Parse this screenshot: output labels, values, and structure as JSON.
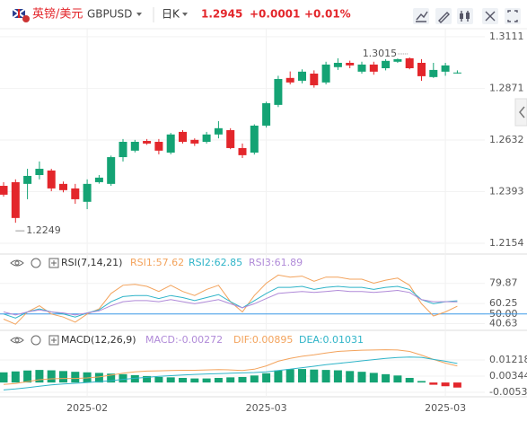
{
  "header": {
    "name": "英镑/美元",
    "symbol": "GBPUSD",
    "period": "日K",
    "price": "1.2945",
    "change": "+0.0001",
    "change_pct": "+0.01%"
  },
  "chart_data": [
    {
      "type": "candlestick",
      "categories": [
        null,
        null,
        null,
        null,
        null,
        null,
        null,
        "2025-02",
        null,
        null,
        null,
        null,
        null,
        null,
        null,
        null,
        null,
        null,
        null,
        null,
        null,
        null,
        "2025-03",
        null,
        null,
        null,
        null,
        null,
        null,
        null,
        null,
        null,
        null,
        null,
        null,
        null,
        null,
        "2025-03",
        null
      ],
      "open": [
        1.242,
        1.2437,
        1.2429,
        1.247,
        1.2491,
        1.2429,
        1.2408,
        1.2346,
        1.2437,
        1.2429,
        1.2553,
        1.2583,
        1.2628,
        1.2624,
        1.2574,
        1.267,
        1.2633,
        1.2624,
        1.2658,
        1.2678,
        1.2595,
        1.2574,
        1.2699,
        1.2795,
        1.292,
        1.2907,
        1.294,
        1.2899,
        1.297,
        1.299,
        1.2949,
        1.2982,
        1.2965,
        1.2995,
        1.3011,
        1.299,
        1.2924,
        1.2949,
        1.2944
      ],
      "high": [
        1.2437,
        1.245,
        1.2499,
        1.2533,
        1.2499,
        1.244,
        1.2429,
        1.245,
        1.247,
        1.256,
        1.2637,
        1.2633,
        1.2637,
        1.2637,
        1.2665,
        1.2678,
        1.264,
        1.267,
        1.272,
        1.2687,
        1.2616,
        1.2705,
        1.281,
        1.293,
        1.295,
        1.296,
        1.2955,
        1.2995,
        1.3011,
        1.3,
        1.2995,
        1.2995,
        1.3007,
        1.301,
        1.3015,
        1.3007,
        1.299,
        1.299,
        1.2955
      ],
      "low": [
        1.237,
        1.2249,
        1.2358,
        1.245,
        1.2395,
        1.239,
        1.2337,
        1.2312,
        1.243,
        1.242,
        1.2533,
        1.2575,
        1.261,
        1.2566,
        1.2566,
        1.2616,
        1.2605,
        1.2616,
        1.264,
        1.259,
        1.2549,
        1.2565,
        1.269,
        1.2785,
        1.289,
        1.2895,
        1.2875,
        1.289,
        1.2957,
        1.2965,
        1.294,
        1.2935,
        1.2955,
        1.299,
        1.296,
        1.2907,
        1.292,
        1.293,
        1.294
      ],
      "close": [
        1.2379,
        1.2271,
        1.2466,
        1.2499,
        1.2408,
        1.24,
        1.2358,
        1.2429,
        1.2458,
        1.2553,
        1.2624,
        1.2624,
        1.2616,
        1.2583,
        1.2658,
        1.2624,
        1.2616,
        1.2658,
        1.2687,
        1.2595,
        1.2562,
        1.2699,
        1.2803,
        1.2915,
        1.2899,
        1.2949,
        1.2886,
        1.2982,
        1.299,
        1.2978,
        1.2982,
        1.2949,
        1.2999,
        1.3007,
        1.2965,
        1.2928,
        1.2957,
        1.2978,
        1.2945
      ],
      "up_color": "#14a374",
      "down_color": "#e3262b",
      "ylim": [
        1.2104,
        1.3148
      ],
      "yticks": [
        1.3111,
        1.2871,
        1.2632,
        1.2393,
        1.2154
      ],
      "annotations": [
        1.3015,
        1.2249
      ]
    },
    {
      "type": "line",
      "title": "RSI(7,14,21)",
      "series": [
        {
          "name": "RSI1:57.62",
          "color": "#f3a35c",
          "values": [
            45,
            40,
            52,
            58,
            50,
            47,
            42,
            50,
            55,
            70,
            78,
            79,
            77,
            72,
            78,
            72,
            68,
            74,
            78,
            62,
            52,
            68,
            80,
            88,
            86,
            87,
            82,
            86,
            86,
            84,
            84,
            80,
            83,
            85,
            78,
            60,
            48,
            52,
            57.62
          ]
        },
        {
          "name": "RSI2:62.85",
          "color": "#2fb4c8",
          "values": [
            50,
            46,
            52,
            55,
            52,
            50,
            47,
            51,
            54,
            62,
            67,
            68,
            68,
            65,
            68,
            66,
            63,
            66,
            69,
            62,
            56,
            63,
            70,
            76,
            76,
            77,
            74,
            76,
            77,
            76,
            76,
            74,
            76,
            77,
            74,
            64,
            60,
            62,
            62.85
          ]
        },
        {
          "name": "RSI3:61.89",
          "color": "#b08ad8",
          "values": [
            52,
            49,
            52,
            54,
            52,
            51,
            49,
            51,
            53,
            58,
            62,
            63,
            63,
            62,
            64,
            62,
            60,
            62,
            64,
            60,
            56,
            60,
            65,
            70,
            71,
            72,
            71,
            72,
            73,
            72,
            72,
            71,
            72,
            73,
            71,
            64,
            62,
            62,
            61.89
          ]
        }
      ],
      "ylim": [
        34,
        91
      ],
      "yticks": [
        79.87,
        60.25,
        {
          "value": 50,
          "label": "50.00"
        },
        40.63
      ],
      "level": 50,
      "level_color": "#3d9be9"
    },
    {
      "type": "macd",
      "title": "MACD(12,26,9)",
      "series": [
        {
          "name": "MACD:-0.00272",
          "type": "bar",
          "color": "#b08ad8",
          "up_color": "#14a374",
          "down_color": "#e3262b",
          "values": [
            0.0055,
            0.006,
            0.0065,
            0.0068,
            0.0066,
            0.0062,
            0.0058,
            0.0055,
            0.0052,
            0.0048,
            0.0045,
            0.004,
            0.0035,
            0.003,
            0.0028,
            0.0025,
            0.0022,
            0.0022,
            0.0025,
            0.0028,
            0.003,
            0.0038,
            0.005,
            0.0065,
            0.0072,
            0.0073,
            0.007,
            0.0068,
            0.0066,
            0.0062,
            0.0058,
            0.0052,
            0.0045,
            0.0038,
            0.0025,
            0.0008,
            -0.0012,
            -0.002,
            -0.00272
          ]
        },
        {
          "name": "DIF:0.00895",
          "color": "#f3a35c",
          "values": [
            -0.001,
            -0.0005,
            0.0005,
            0.0015,
            0.002,
            0.0022,
            0.0022,
            0.0025,
            0.003,
            0.004,
            0.005,
            0.0058,
            0.0062,
            0.0063,
            0.0065,
            0.0066,
            0.0066,
            0.0068,
            0.007,
            0.0068,
            0.0065,
            0.0072,
            0.009,
            0.0115,
            0.013,
            0.0142,
            0.015,
            0.016,
            0.0168,
            0.0172,
            0.0175,
            0.0176,
            0.0177,
            0.0176,
            0.0168,
            0.0148,
            0.0125,
            0.0105,
            0.00895
          ]
        },
        {
          "name": "DEA:0.01031",
          "color": "#2fb4c8",
          "values": [
            -0.004,
            -0.0035,
            -0.0028,
            -0.002,
            -0.0013,
            -0.0008,
            -0.0004,
            0,
            0.0005,
            0.001,
            0.0017,
            0.0023,
            0.0028,
            0.0033,
            0.0037,
            0.0041,
            0.0044,
            0.0046,
            0.0048,
            0.005,
            0.0052,
            0.0054,
            0.0058,
            0.0065,
            0.0072,
            0.008,
            0.0088,
            0.0096,
            0.0103,
            0.011,
            0.0117,
            0.0124,
            0.013,
            0.0135,
            0.0138,
            0.0136,
            0.0125,
            0.0115,
            0.01031
          ]
        }
      ],
      "ylim": [
        -0.0077,
        0.0185
      ],
      "yticks": [
        0.01218,
        0.00344,
        {
          "value": -0.0053,
          "label": "-0.00530"
        }
      ]
    }
  ]
}
